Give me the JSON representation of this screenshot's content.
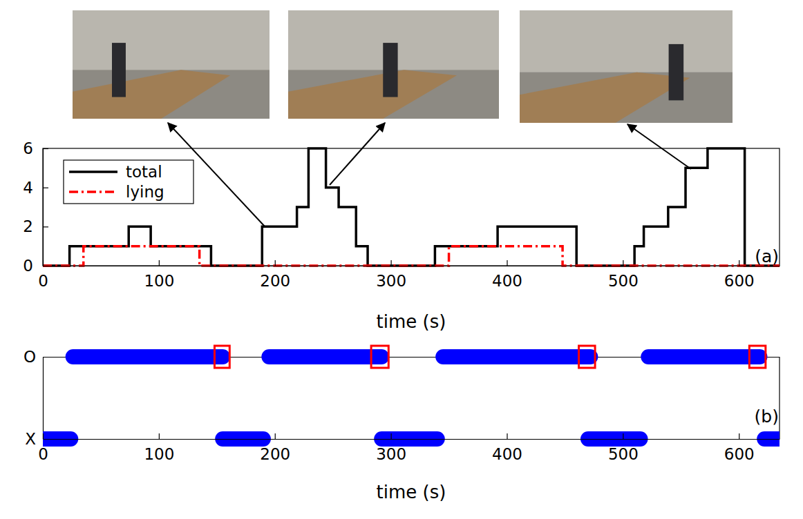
{
  "chart_data": [
    {
      "type": "line",
      "annotation": "(a)",
      "xlabel": "time (s)",
      "x": [
        0,
        23,
        35,
        74,
        93,
        135,
        145,
        189,
        219,
        229,
        244,
        255,
        270,
        280,
        338,
        350,
        392,
        448,
        460,
        510,
        518,
        539,
        554,
        573,
        605,
        635
      ],
      "series": [
        {
          "name": "total",
          "color": "#000000",
          "line_style": "solid",
          "values": [
            0,
            1,
            1,
            2,
            1,
            1,
            0,
            2,
            3,
            6,
            4,
            3,
            1,
            0,
            1,
            1,
            2,
            2,
            0,
            1,
            2,
            3,
            5,
            6,
            0,
            0
          ]
        },
        {
          "name": "lying",
          "color": "#ff0000",
          "line_style": "dashdot",
          "values": [
            0,
            0,
            1,
            1,
            1,
            0,
            0,
            0,
            0,
            0,
            0,
            0,
            0,
            0,
            0,
            1,
            1,
            0,
            0,
            0,
            0,
            0,
            0,
            0,
            0,
            0
          ]
        }
      ],
      "xlim": [
        0,
        635
      ],
      "ylim": [
        0,
        6
      ],
      "xticks": [
        0,
        100,
        200,
        300,
        400,
        500,
        600
      ],
      "yticks": [
        0,
        2,
        4,
        6
      ],
      "legend": "upper left"
    },
    {
      "type": "timeline",
      "annotation": "(b)",
      "xlabel": "time (s)",
      "categories": [
        "O",
        "X"
      ],
      "xlim": [
        0,
        635
      ],
      "xticks": [
        0,
        100,
        200,
        300,
        400,
        500,
        600
      ],
      "series": [
        {
          "type": "segment",
          "color": "#0000ff",
          "category": [
            "O",
            "O",
            "O",
            "O",
            "X",
            "X",
            "X",
            "X",
            "X"
          ],
          "start": [
            26,
            195,
            345,
            522,
            0,
            155,
            292,
            470,
            622
          ],
          "end": [
            155,
            292,
            472,
            618,
            24,
            190,
            340,
            515,
            635
          ]
        },
        {
          "type": "box",
          "color": "#ff0000",
          "category": [
            "O",
            "O",
            "O",
            "O"
          ],
          "start": [
            148,
            283,
            462,
            609
          ],
          "end": [
            161,
            298,
            476,
            623
          ]
        }
      ]
    }
  ]
}
